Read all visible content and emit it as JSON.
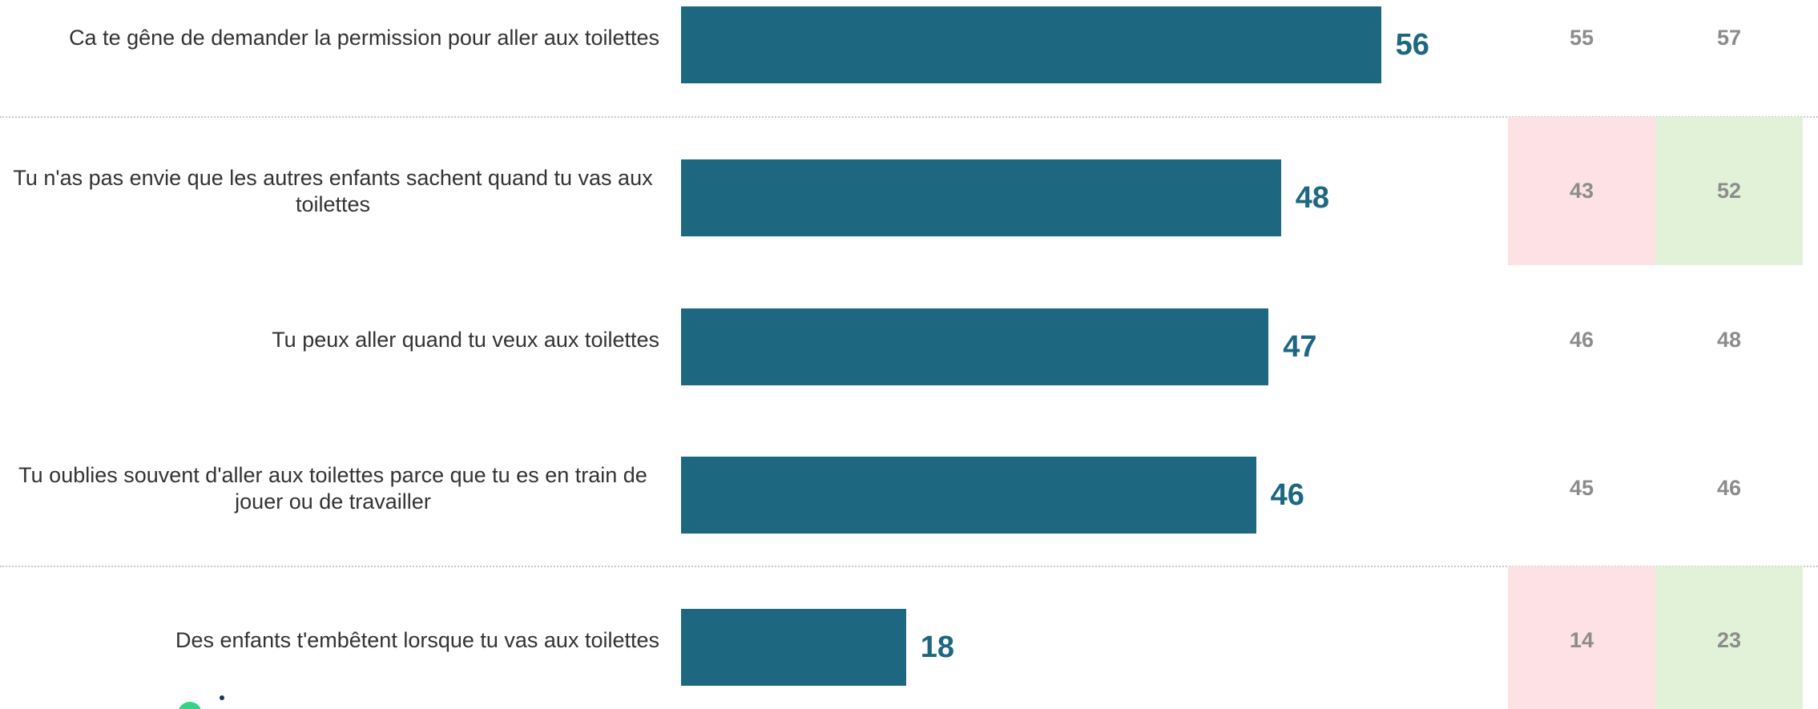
{
  "chart_data": {
    "type": "bar",
    "orientation": "horizontal",
    "xlim": [
      0,
      100
    ],
    "colors": {
      "bar": "#1d6880",
      "value_label": "#1d6880",
      "comparison_text": "#8c8c8c",
      "highlight_low": "#fde1e4",
      "highlight_high": "#e1f2d8"
    },
    "categories": [
      "Ca te gêne de demander la permission pour aller aux toilettes",
      "Tu n'as pas envie que les autres enfants sachent quand tu vas aux toilettes",
      "Tu peux aller quand tu veux aux toilettes",
      "Tu oublies souvent d'aller aux toilettes parce que tu es en train de jouer ou de travailler",
      "Des enfants t'embêtent lorsque tu vas aux toilettes"
    ],
    "values": [
      56,
      48,
      47,
      46,
      18
    ],
    "comparison_columns": [
      {
        "values": [
          55,
          43,
          46,
          45,
          14
        ]
      },
      {
        "values": [
          57,
          52,
          48,
          46,
          23
        ]
      }
    ],
    "highlighted_rows": [
      false,
      true,
      false,
      false,
      true
    ]
  },
  "logo": {
    "name": "brand-logo",
    "accent_color": "#35d38a"
  }
}
